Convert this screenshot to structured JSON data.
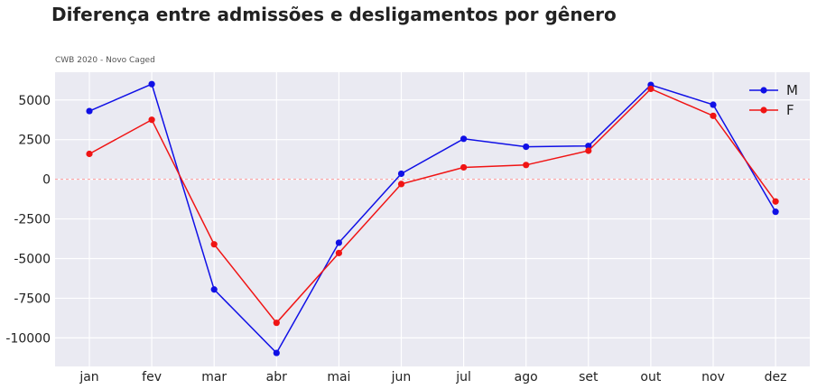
{
  "chart_data": {
    "type": "line",
    "title": "Diferença entre admissões e desligamentos por gênero",
    "subtitle": "CWB 2020 - Novo Caged",
    "categories": [
      "jan",
      "fev",
      "mar",
      "abr",
      "mai",
      "jun",
      "jul",
      "ago",
      "set",
      "out",
      "nov",
      "dez"
    ],
    "series": [
      {
        "name": "M",
        "color": "#1010e6",
        "values": [
          4300,
          6000,
          -6950,
          -10950,
          -4000,
          350,
          2550,
          2050,
          2100,
          5950,
          4700,
          -2050
        ]
      },
      {
        "name": "F",
        "color": "#f01414",
        "values": [
          1600,
          3750,
          -4100,
          -9050,
          -4650,
          -300,
          750,
          900,
          1800,
          5700,
          4000,
          -1400
        ]
      }
    ],
    "yticks": [
      5000,
      2500,
      0,
      -2500,
      -5000,
      -7500,
      -10000
    ],
    "ylim": [
      -11800,
      6750
    ],
    "zero_line": {
      "value": 0,
      "color": "#ff9a9a",
      "style": "dashed"
    },
    "grid": true,
    "legend_position": "top-right",
    "background": "#eaeaf2",
    "gridline_color": "#ffffff"
  }
}
